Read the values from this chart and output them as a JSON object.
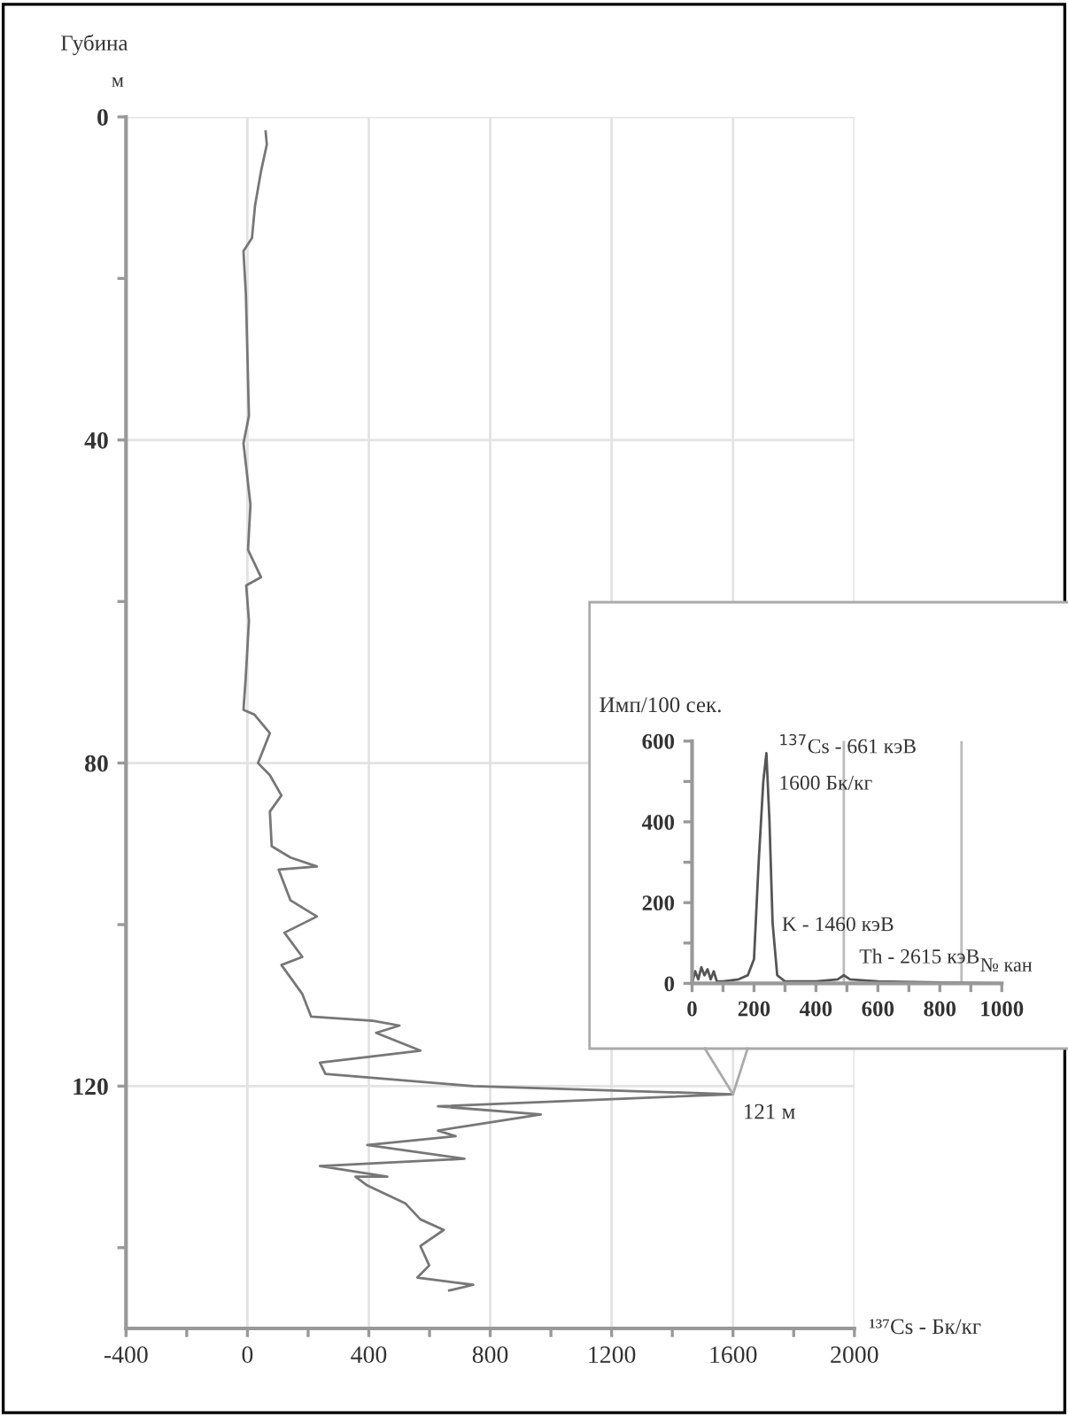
{
  "chart_data": [
    {
      "type": "line",
      "xlabel": "¹³⁷Cs - Бк/кг",
      "ylabel": "Губина\nм",
      "xlim": [
        -400,
        2000
      ],
      "ylim": [
        150,
        0
      ],
      "xticks": [
        -400,
        {
          "value": -200,
          "label": null
        },
        0,
        {
          "value": 200,
          "label": null
        },
        400,
        {
          "value": 600,
          "label": null
        },
        800,
        {
          "value": 1000,
          "label": null
        },
        1200,
        {
          "value": 1400,
          "label": null
        },
        1600,
        {
          "value": 1800,
          "label": null
        },
        2000
      ],
      "yticks": [
        0,
        {
          "value": 20,
          "label": null
        },
        40,
        {
          "value": 60,
          "label": null
        },
        80,
        {
          "value": 100,
          "label": null
        },
        120,
        {
          "value": 140,
          "label": null
        }
      ],
      "grid": true,
      "line_style": "solid",
      "marker": "none",
      "annotations": [
        {
          "text": "121 м",
          "x": 1600,
          "y": 121
        }
      ],
      "series": [
        {
          "color": "#777777",
          "x": [
            60,
            64,
            45,
            25,
            15,
            -13,
            -5,
            0,
            5,
            -13,
            10,
            2,
            45,
            -4,
            5,
            -6,
            -13,
            23,
            74,
            35,
            74,
            112,
            74,
            80,
            142,
            229,
            103,
            142,
            229,
            122,
            181,
            112,
            181,
            210,
            414,
            501,
            424,
            570,
            239,
            257,
            744,
            1600,
            628,
            967,
            628,
            686,
            395,
            715,
            239,
            461,
            356,
            395,
            520,
            570,
            647,
            570,
            599,
            560,
            744,
            665
          ],
          "values": [
            1.8,
            3.4,
            6.7,
            11,
            15,
            16.6,
            22,
            29.5,
            37,
            40.4,
            48,
            53.6,
            57,
            58,
            62.4,
            69.7,
            73.4,
            74,
            76.3,
            80,
            81.5,
            84,
            86,
            90.3,
            91.7,
            92.8,
            93.2,
            97,
            99,
            101,
            104,
            105,
            108.6,
            111.4,
            111.9,
            112.5,
            113.4,
            115.6,
            117.1,
            118.5,
            120,
            121,
            122.5,
            123.5,
            125.5,
            126.2,
            127.3,
            129,
            129.9,
            131.2,
            131.2,
            132.3,
            134.5,
            136.5,
            137.8,
            139.8,
            142.2,
            143.7,
            144.6,
            145.3
          ]
        }
      ]
    },
    {
      "type": "line",
      "ylabel": "Имп/100 сек.",
      "xlabel": "№ кан",
      "xlim": [
        0,
        1000
      ],
      "ylim": [
        0,
        600
      ],
      "xticks": [
        0,
        {
          "value": 100,
          "label": null
        },
        200,
        {
          "value": 300,
          "label": null
        },
        400,
        {
          "value": 500,
          "label": null
        },
        600,
        {
          "value": 700,
          "label": null
        },
        800,
        {
          "value": 900,
          "label": null
        },
        1000
      ],
      "yticks": [
        0,
        {
          "value": 100,
          "label": null
        },
        200,
        {
          "value": 300,
          "label": null
        },
        400,
        {
          "value": 500,
          "label": null
        },
        600
      ],
      "grid": false,
      "line_style": "solid",
      "marker": "none",
      "ref_lines": [
        {
          "axis": "x",
          "value": 490,
          "color": "#bbbbbb"
        },
        {
          "axis": "x",
          "value": 870,
          "color": "#bbbbbb"
        }
      ],
      "annotations": [
        {
          "text": "$^{137}$Cs - 661 кэВ",
          "x": 240,
          "y": 570
        },
        {
          "text": "1600 Бк/кг",
          "x": 240,
          "y": 480
        },
        {
          "text": "K - 1460 кэВ",
          "x": 250,
          "y": 130
        },
        {
          "text": "Th - 2615 кэВ",
          "x": 500,
          "y": 50
        }
      ],
      "series": [
        {
          "color": "#555555",
          "x": [
            0,
            10,
            20,
            30,
            40,
            50,
            60,
            70,
            80,
            100,
            150,
            180,
            200,
            215,
            230,
            240,
            250,
            260,
            275,
            300,
            400,
            470,
            490,
            510,
            600,
            1000
          ],
          "values": [
            0,
            30,
            10,
            40,
            20,
            35,
            10,
            30,
            5,
            5,
            10,
            20,
            60,
            300,
            500,
            570,
            400,
            150,
            20,
            5,
            5,
            10,
            20,
            10,
            5,
            0
          ]
        }
      ]
    }
  ]
}
